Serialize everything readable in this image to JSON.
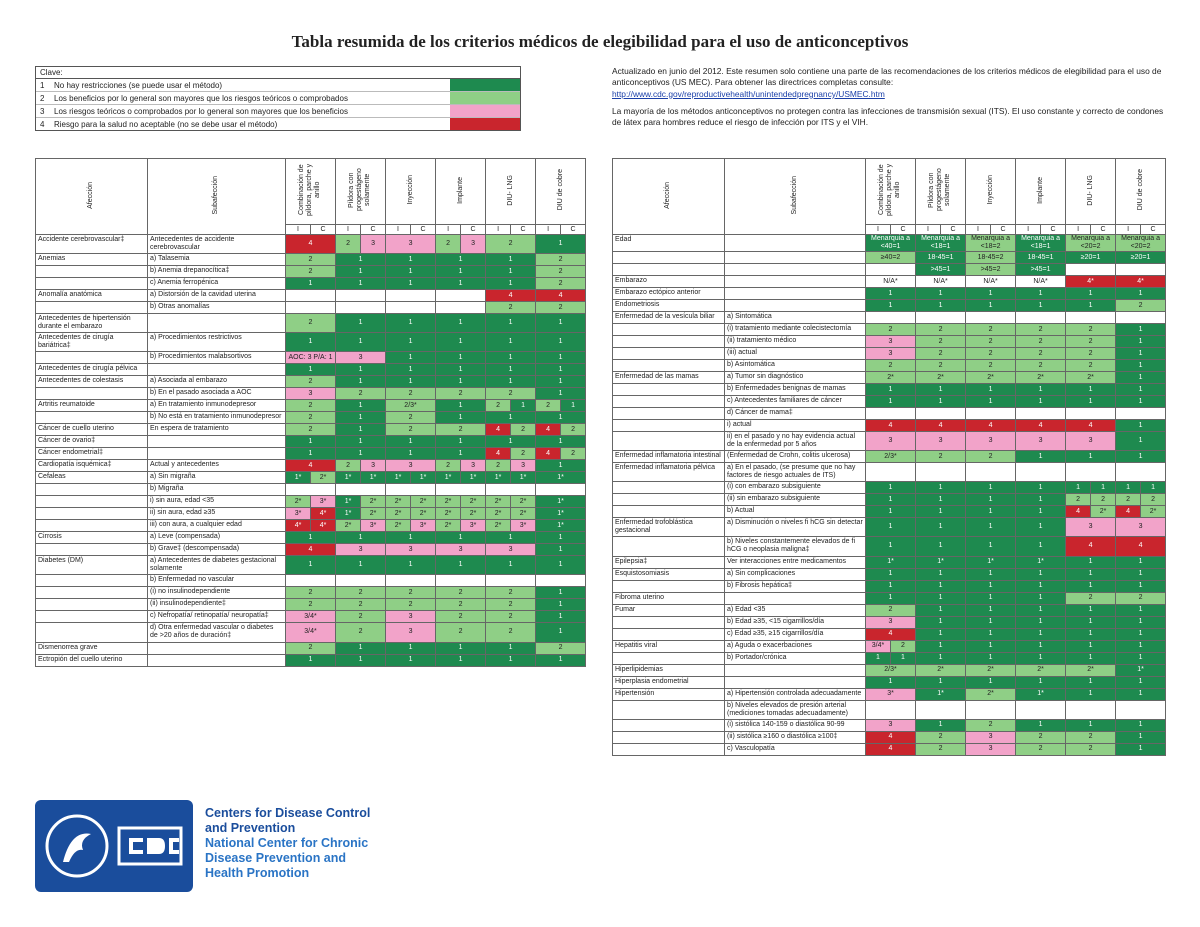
{
  "title": "Tabla resumida de los criterios médicos de elegibilidad para el uso de anticonceptivos",
  "key": {
    "heading": "Clave:",
    "items": [
      {
        "num": 1,
        "text": "No hay restricciones (se puede usar el método)",
        "color": "#1e8a4f"
      },
      {
        "num": 2,
        "text": "Los beneficios por lo general son mayores que los riesgos teóricos o comprobados",
        "color": "#8fcf86"
      },
      {
        "num": 3,
        "text": "Los riesgos teóricos o comprobados por lo general son mayores que los beneficios",
        "color": "#f2a3c9"
      },
      {
        "num": 4,
        "text": "Riesgo para la salud no aceptable (no se debe usar el método)",
        "color": "#c9252d"
      }
    ]
  },
  "notes": {
    "updated": "Actualizado en junio del 2012. Este resumen solo contiene una parte de las recomendaciones de los criterios médicos de elegibilidad para el uso de anticonceptivos (US MEC). Para obtener las directrices completas consulte:",
    "link": "http://www.cdc.gov/reproductivehealth/unintendedpregnancy/USMEC.htm",
    "sti": "La mayoría de los métodos anticonceptivos no protegen contra las infecciones de transmisión sexual (ITS). El uso constante y correcto de condones de látex para hombres reduce el riesgo de infección por ITS y el VIH."
  },
  "columns": {
    "condition": "Afección",
    "subcondition": "Subafección",
    "methods": [
      "Combinación de píldora, parche y anillo",
      "Píldora con progestágeno solamente",
      "Inyección",
      "Implante",
      "DIU- LNG",
      "DIU de cobre"
    ],
    "ic": [
      "I",
      "C"
    ]
  },
  "left": {
    "rows": [
      {
        "condition": "Accidente cerebrovascular‡",
        "subcondition": "Antecedentes de accidente cerebrovascular",
        "cells": [
          4,
          [
            2,
            3
          ],
          3,
          [
            2,
            3
          ],
          2,
          1
        ]
      },
      {
        "condition": "Anemias",
        "subcondition": "a) Talasemia",
        "cells": [
          2,
          1,
          1,
          1,
          1,
          2
        ]
      },
      {
        "subcondition": "b) Anemia drepanocítica‡",
        "cells": [
          2,
          1,
          1,
          1,
          1,
          2
        ]
      },
      {
        "subcondition": "c) Anemia ferropénica",
        "cells": [
          1,
          1,
          1,
          1,
          1,
          2
        ]
      },
      {
        "condition": "Anomalía anatómica",
        "subcondition": "a) Distorsión de la cavidad uterina",
        "cells": [
          null,
          null,
          null,
          null,
          4,
          4
        ]
      },
      {
        "subcondition": "b) Otras anomalías",
        "cells": [
          null,
          null,
          null,
          null,
          2,
          2
        ]
      },
      {
        "condition": "Antecedentes de hipertensión durante el embarazo",
        "cells": [
          2,
          1,
          1,
          1,
          1,
          1
        ]
      },
      {
        "condition": "Antecedentes de cirugía bariátrica‡",
        "subcondition": "a) Procedimientos restrictivos",
        "cells": [
          1,
          1,
          1,
          1,
          1,
          1
        ]
      },
      {
        "subcondition": "b) Procedimientos malabsortivos",
        "cells": [
          "AOC: 3 P/A: 1",
          3,
          1,
          1,
          1,
          1
        ]
      },
      {
        "condition": "Antecedentes de cirugía pélvica",
        "cells": [
          1,
          1,
          1,
          1,
          1,
          1
        ]
      },
      {
        "condition": "Antecedentes de colestasis",
        "subcondition": "a) Asociada al embarazo",
        "cells": [
          2,
          1,
          1,
          1,
          1,
          1
        ]
      },
      {
        "subcondition": "b) En el pasado asociada a AOC",
        "cells": [
          3,
          2,
          2,
          2,
          2,
          1
        ]
      },
      {
        "condition": "Artritis reumatoide",
        "subcondition": "a) En tratamiento inmunodepresor",
        "cells": [
          2,
          1,
          "2/3*",
          1,
          [
            2,
            1
          ],
          [
            2,
            1
          ]
        ]
      },
      {
        "subcondition": "b) No está en tratamiento inmunodepresor",
        "cells": [
          2,
          1,
          2,
          1,
          1,
          1
        ]
      },
      {
        "condition": "Cáncer de cuello uterino",
        "subcondition": "En espera de tratamiento",
        "cells": [
          2,
          1,
          2,
          2,
          [
            4,
            2
          ],
          [
            4,
            2
          ]
        ]
      },
      {
        "condition": "Cáncer de ovario‡",
        "cells": [
          1,
          1,
          1,
          1,
          1,
          1
        ]
      },
      {
        "condition": "Cáncer endometrial‡",
        "cells": [
          1,
          1,
          1,
          1,
          [
            4,
            2
          ],
          [
            4,
            2
          ]
        ]
      },
      {
        "condition": "Cardiopatía isquémica‡",
        "subcondition": "Actual y antecedentes",
        "cells": [
          4,
          [
            2,
            3
          ],
          3,
          [
            2,
            3
          ],
          [
            2,
            3
          ],
          1
        ]
      },
      {
        "condition": "Cefaleas",
        "subcondition": "a) Sin migraña",
        "cells": [
          [
            "1*",
            "2*"
          ],
          [
            "1*",
            "1*"
          ],
          [
            "1*",
            "1*"
          ],
          [
            "1*",
            "1*"
          ],
          [
            "1*",
            "1*"
          ],
          "1*"
        ]
      },
      {
        "subcondition": "b) Migraña"
      },
      {
        "subcondition": "i) sin aura, edad <35",
        "cells": [
          [
            "2*",
            "3*"
          ],
          [
            "1*",
            "2*"
          ],
          [
            "2*",
            "2*"
          ],
          [
            "2*",
            "2*"
          ],
          [
            "2*",
            "2*"
          ],
          "1*"
        ]
      },
      {
        "subcondition": "ii) sin aura, edad ≥35",
        "cells": [
          [
            "3*",
            "4*"
          ],
          [
            "1*",
            "2*"
          ],
          [
            "2*",
            "2*"
          ],
          [
            "2*",
            "2*"
          ],
          [
            "2*",
            "2*"
          ],
          "1*"
        ]
      },
      {
        "subcondition": "iii) con aura, a cualquier edad",
        "cells": [
          [
            "4*",
            "4*"
          ],
          [
            "2*",
            "3*"
          ],
          [
            "2*",
            "3*"
          ],
          [
            "2*",
            "3*"
          ],
          [
            "2*",
            "3*"
          ],
          "1*"
        ]
      },
      {
        "condition": "Cirrosis",
        "subcondition": "a) Leve (compensada)",
        "cells": [
          1,
          1,
          1,
          1,
          1,
          1
        ]
      },
      {
        "subcondition": "b) Grave‡ (descompensada)",
        "cells": [
          4,
          3,
          3,
          3,
          3,
          1
        ]
      },
      {
        "condition": "Diabetes (DM)",
        "subcondition": "a) Antecedentes de diabetes gestacional solamente",
        "cells": [
          1,
          1,
          1,
          1,
          1,
          1
        ]
      },
      {
        "subcondition": "b) Enfermedad no vascular"
      },
      {
        "subcondition": "(i) no insulinodependiente",
        "cells": [
          2,
          2,
          2,
          2,
          2,
          1
        ]
      },
      {
        "subcondition": "(ii) insulinodependiente‡",
        "cells": [
          2,
          2,
          2,
          2,
          2,
          1
        ]
      },
      {
        "subcondition": "c) Nefropatía/ retinopatía/ neuropatía‡",
        "cells": [
          "3/4*",
          2,
          3,
          2,
          2,
          1
        ]
      },
      {
        "subcondition": "d) Otra enfermedad vascular o diabetes de >20 años de duración‡",
        "cells": [
          "3/4*",
          2,
          3,
          2,
          2,
          1
        ]
      },
      {
        "condition": "Dismenorrea grave",
        "cells": [
          2,
          1,
          1,
          1,
          1,
          2
        ]
      },
      {
        "condition": "Ectropión del cuello uterino",
        "cells": [
          1,
          1,
          1,
          1,
          1,
          1
        ]
      }
    ]
  },
  "right": {
    "rows": [
      {
        "condition": "Edad",
        "cells": [
          "Menarquia a <40=1",
          "Menarquia a <18=1",
          "Menarquia a <18=2",
          "Menarquia a <18=1",
          "Menarquia a <20=2",
          "Menarquia a <20=2"
        ]
      },
      {
        "cells": [
          "≥40=2",
          "18-45=1",
          "18-45=2",
          "18-45=1",
          "≥20=1",
          "≥20=1"
        ]
      },
      {
        "cells": [
          null,
          ">45=1",
          ">45=2",
          ">45=1",
          null,
          null
        ]
      },
      {
        "condition": "Embarazo",
        "cells": [
          "N/A*",
          "N/A*",
          "N/A*",
          "N/A*",
          "4*",
          "4*"
        ]
      },
      {
        "condition": "Embarazo ectópico anterior",
        "cells": [
          1,
          1,
          1,
          1,
          1,
          1
        ]
      },
      {
        "condition": "Endometriosis",
        "cells": [
          1,
          1,
          1,
          1,
          1,
          2
        ]
      },
      {
        "condition": "Enfermedad de la vesícula biliar",
        "subcondition": "a) Sintomática"
      },
      {
        "subcondition": "(i) tratamiento mediante colecistectomía",
        "cells": [
          2,
          2,
          2,
          2,
          2,
          1
        ]
      },
      {
        "subcondition": "(ii) tratamiento médico",
        "cells": [
          3,
          2,
          2,
          2,
          2,
          1
        ]
      },
      {
        "subcondition": "(iii) actual",
        "cells": [
          3,
          2,
          2,
          2,
          2,
          1
        ]
      },
      {
        "subcondition": "b) Asintomática",
        "cells": [
          2,
          2,
          2,
          2,
          2,
          1
        ]
      },
      {
        "condition": "Enfermedad de las mamas",
        "subcondition": "a) Tumor sin diagnóstico",
        "cells": [
          "2*",
          "2*",
          "2*",
          "2*",
          "2*",
          1
        ]
      },
      {
        "subcondition": "b) Enfermedades benignas de mamas",
        "cells": [
          1,
          1,
          1,
          1,
          1,
          1
        ]
      },
      {
        "subcondition": "c) Antecedentes familiares de cáncer",
        "cells": [
          1,
          1,
          1,
          1,
          1,
          1
        ]
      },
      {
        "subcondition": "d) Cáncer de mama‡"
      },
      {
        "subcondition": "i) actual",
        "cells": [
          4,
          4,
          4,
          4,
          4,
          1
        ]
      },
      {
        "subcondition": "ii) en el pasado y no hay evidencia actual de la enfermedad por 5 años",
        "cells": [
          3,
          3,
          3,
          3,
          3,
          1
        ]
      },
      {
        "condition": "Enfermedad inflamatoria intestinal",
        "subcondition": "(Enfermedad de Crohn, colitis ulcerosa)",
        "cells": [
          "2/3*",
          2,
          2,
          1,
          1,
          1
        ]
      },
      {
        "condition": "Enfermedad inflamatoria pélvica",
        "subcondition": "a) En el pasado, (se presume que no hay factores de riesgo actuales de ITS)"
      },
      {
        "subcondition": "(i) con embarazo subsiguiente",
        "cells": [
          1,
          1,
          1,
          1,
          [
            1,
            1
          ],
          [
            1,
            1
          ]
        ]
      },
      {
        "subcondition": "(ii) sin embarazo subsiguiente",
        "cells": [
          1,
          1,
          1,
          1,
          [
            2,
            2
          ],
          [
            2,
            2
          ]
        ]
      },
      {
        "subcondition": "b) Actual",
        "cells": [
          1,
          1,
          1,
          1,
          [
            4,
            "2*"
          ],
          [
            4,
            "2*"
          ]
        ]
      },
      {
        "condition": "Enfermedad trofoblástica gestacional",
        "subcondition": "a) Disminución o niveles fi hCG sin detectar",
        "cells": [
          1,
          1,
          1,
          1,
          3,
          3
        ]
      },
      {
        "subcondition": "b) Niveles constantemente elevados de fi hCG o neoplasia maligna‡",
        "cells": [
          1,
          1,
          1,
          1,
          4,
          4
        ]
      },
      {
        "condition": "Epilepsia‡",
        "subcondition": "Ver interacciones entre medicamentos",
        "cells": [
          "1*",
          "1*",
          "1*",
          "1*",
          1,
          1
        ]
      },
      {
        "condition": "Esquistosomiasis",
        "subcondition": "a) Sin complicaciones",
        "cells": [
          1,
          1,
          1,
          1,
          1,
          1
        ]
      },
      {
        "subcondition": "b) Fibrosis hepática‡",
        "cells": [
          1,
          1,
          1,
          1,
          1,
          1
        ]
      },
      {
        "condition": "Fibroma uterino",
        "cells": [
          1,
          1,
          1,
          1,
          2,
          2
        ]
      },
      {
        "condition": "Fumar",
        "subcondition": "a) Edad <35",
        "cells": [
          2,
          1,
          1,
          1,
          1,
          1
        ]
      },
      {
        "subcondition": "b) Edad ≥35, <15 cigarrillos/día",
        "cells": [
          3,
          1,
          1,
          1,
          1,
          1
        ]
      },
      {
        "subcondition": "c) Edad ≥35, ≥15 cigarrillos/día",
        "cells": [
          4,
          1,
          1,
          1,
          1,
          1
        ]
      },
      {
        "condition": "Hepatitis viral",
        "subcondition": "a) Aguda o exacerbaciones",
        "cells": [
          [
            "3/4*",
            2
          ],
          1,
          1,
          1,
          1,
          1
        ]
      },
      {
        "subcondition": "b) Portador/crónica",
        "cells": [
          [
            1,
            1
          ],
          1,
          1,
          1,
          1,
          1
        ]
      },
      {
        "condition": "Hiperlipidemias",
        "cells": [
          "2/3*",
          "2*",
          "2*",
          "2*",
          "2*",
          "1*"
        ]
      },
      {
        "condition": "Hiperplasia endometrial",
        "cells": [
          1,
          1,
          1,
          1,
          1,
          1
        ]
      },
      {
        "condition": "Hipertensión",
        "subcondition": "a) Hipertensión controlada adecuadamente",
        "cells": [
          "3*",
          "1*",
          "2*",
          "1*",
          1,
          1
        ]
      },
      {
        "subcondition": "b) Niveles elevados de presión arterial (mediciones tomadas adecuadamente)"
      },
      {
        "subcondition": "(i) sistólica 140-159 o diastólica 90-99",
        "cells": [
          3,
          1,
          2,
          1,
          1,
          1
        ]
      },
      {
        "subcondition": "(ii) sistólica ≥160 o diastólica ≥100‡",
        "cells": [
          4,
          2,
          3,
          2,
          2,
          1
        ]
      },
      {
        "subcondition": "c) Vasculopatía",
        "cells": [
          4,
          2,
          3,
          2,
          2,
          1
        ]
      }
    ]
  },
  "logo": {
    "agency": "Centers for Disease Control and Prevention",
    "center": "National Center for Chronic Disease Prevention and Health Promotion"
  }
}
